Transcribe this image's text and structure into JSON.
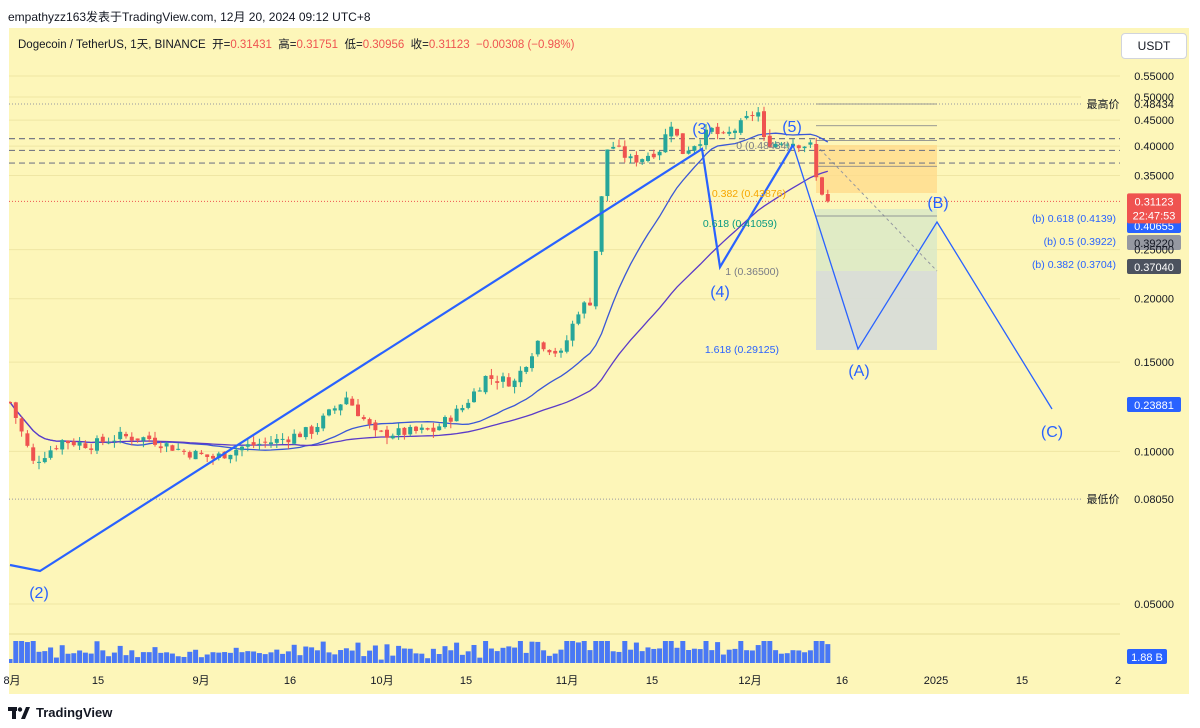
{
  "header": {
    "publisher_line": "empathyzz163发表于TradingView.com, 12月 20, 2024 09:12 UTC+8"
  },
  "legend": {
    "symbol": "Dogecoin / TetherUS, 1天, BINANCE",
    "open_label": "开=",
    "open": "0.31431",
    "high_label": "高=",
    "high": "0.31751",
    "low_label": "低=",
    "low": "0.30956",
    "close_label": "收=",
    "close": "0.31123",
    "change": "−0.00308 (−0.98%)"
  },
  "currency_button": "USDT",
  "footer": {
    "logo_text": "TradingView"
  },
  "colors": {
    "panel_bg": "#fdf6b9",
    "wave_blue": "#2962ff",
    "ma_blue": "#3a57d6",
    "ma_purple": "#5b3bc8",
    "up": "#26a69a",
    "down": "#ef5350",
    "last_price_red": "#ef5350",
    "level_dark": "#4c525e",
    "level_grey": "#9598a1",
    "level_blue": "#2962ff"
  },
  "chart_data": {
    "type": "candlestick",
    "title": "Dogecoin / TetherUS, 1天, BINANCE",
    "y_axis": {
      "ticks": [
        "0.55000",
        "0.50000",
        "0.45000",
        "0.40000",
        "0.35000",
        "0.25000",
        "0.20000",
        "0.15000",
        "0.10000",
        "0.05000"
      ],
      "tick_values": [
        0.55,
        0.5,
        0.45,
        0.4,
        0.35,
        0.25,
        0.2,
        0.15,
        0.1,
        0.05
      ]
    },
    "x_axis": {
      "ticks": [
        "8月",
        "15",
        "9月",
        "16",
        "10月",
        "15",
        "11月",
        "15",
        "12月",
        "16",
        "2025",
        "15",
        "2"
      ]
    },
    "price_path": [
      [
        "2024-08-01",
        0.125
      ],
      [
        "2024-08-05",
        0.095
      ],
      [
        "2024-08-10",
        0.105
      ],
      [
        "2024-08-15",
        0.103
      ],
      [
        "2024-08-20",
        0.107
      ],
      [
        "2024-08-25",
        0.106
      ],
      [
        "2024-08-31",
        0.1
      ],
      [
        "2024-09-05",
        0.097
      ],
      [
        "2024-09-10",
        0.102
      ],
      [
        "2024-09-16",
        0.105
      ],
      [
        "2024-09-22",
        0.11
      ],
      [
        "2024-09-28",
        0.128
      ],
      [
        "2024-10-03",
        0.108
      ],
      [
        "2024-10-08",
        0.109
      ],
      [
        "2024-10-13",
        0.11
      ],
      [
        "2024-10-18",
        0.122
      ],
      [
        "2024-10-22",
        0.14
      ],
      [
        "2024-10-27",
        0.137
      ],
      [
        "2024-10-31",
        0.165
      ],
      [
        "2024-11-04",
        0.155
      ],
      [
        "2024-11-07",
        0.19
      ],
      [
        "2024-11-09",
        0.198
      ],
      [
        "2024-11-11",
        0.315
      ],
      [
        "2024-11-12",
        0.395
      ],
      [
        "2024-11-13",
        0.4
      ],
      [
        "2024-11-16",
        0.375
      ],
      [
        "2024-11-18",
        0.38
      ],
      [
        "2024-11-21",
        0.395
      ],
      [
        "2024-11-23",
        0.445
      ],
      [
        "2024-11-25",
        0.39
      ],
      [
        "2024-11-27",
        0.405
      ],
      [
        "2024-11-30",
        0.43
      ],
      [
        "2024-12-02",
        0.415
      ],
      [
        "2024-12-05",
        0.44
      ],
      [
        "2024-12-07",
        0.463
      ],
      [
        "2024-12-08",
        0.465
      ],
      [
        "2024-12-09",
        0.41
      ],
      [
        "2024-12-11",
        0.405
      ],
      [
        "2024-12-13",
        0.41
      ],
      [
        "2024-12-15",
        0.405
      ],
      [
        "2024-12-17",
        0.4
      ],
      [
        "2024-12-18",
        0.345
      ],
      [
        "2024-12-19",
        0.325
      ],
      [
        "2024-12-20",
        0.31123
      ]
    ],
    "volume": {
      "last_label": "1.88 B"
    },
    "wave_labels": [
      "(2)",
      "(3)",
      "(4)",
      "(5)",
      "(A)",
      "(B)",
      "(C)"
    ],
    "fib_retracement": {
      "levels": [
        {
          "label": "0 (0.48434)"
        },
        {
          "label": "0.382 (0.43876)"
        },
        {
          "label": "0.618 (0.41059)"
        },
        {
          "label": "1 (0.36500)"
        },
        {
          "label": "1.618 (0.29125)"
        }
      ]
    },
    "b_wave_targets": [
      {
        "label": "(b) 0.618 (0.4139)"
      },
      {
        "label": "(b) 0.5 (0.3922)"
      },
      {
        "label": "(b) 0.382 (0.3704)"
      }
    ],
    "price_labels": [
      {
        "text": "0.48434",
        "caption": "最高价"
      },
      {
        "text": "0.41390"
      },
      {
        "text": "0.40655"
      },
      {
        "text": "0.39220"
      },
      {
        "text": "0.37040"
      },
      {
        "text": "0.31123",
        "sub": "22:47:53"
      },
      {
        "text": "0.23881"
      },
      {
        "text": "0.08050",
        "caption": "最低价"
      }
    ]
  }
}
